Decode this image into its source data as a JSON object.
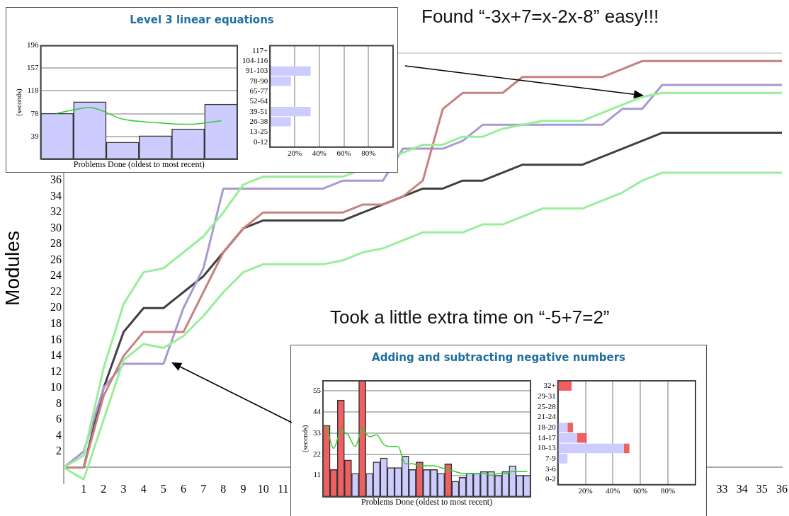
{
  "chart_data": [
    {
      "type": "line",
      "ylabel": "Modules",
      "annotations": [
        "Found “-3x+7=x-2x-8” easy!!!",
        "Took a little extra time on “-5+7=2”"
      ],
      "x": [
        0,
        1,
        2,
        3,
        4,
        5,
        6,
        7,
        8,
        9,
        10,
        11,
        12,
        13,
        14,
        15,
        16,
        17,
        18,
        19,
        20,
        21,
        22,
        23,
        24,
        25,
        26,
        27,
        28,
        29,
        30,
        31,
        32,
        33,
        34,
        35,
        36
      ],
      "xlim": [
        0,
        36
      ],
      "xticks": [
        1,
        2,
        3,
        4,
        5,
        6,
        7,
        8,
        9,
        10,
        11,
        33,
        34,
        35,
        36
      ],
      "ylim": [
        -2,
        52
      ],
      "yticks": [
        2,
        4,
        6,
        8,
        10,
        12,
        14,
        16,
        18,
        20,
        22,
        24,
        26,
        28,
        30,
        32,
        34,
        36
      ],
      "series": [
        {
          "color": "#99ee99",
          "values": [
            0,
            1.5,
            12.5,
            20.5,
            24.5,
            25,
            27,
            29,
            32,
            35.5,
            36.5,
            36.5,
            36.5,
            36.5,
            36.5,
            null,
            null,
            39.5,
            40.5,
            40.5,
            41.5,
            41.5,
            42.5,
            43,
            43.5,
            43.5,
            43.5,
            44.5,
            45.5,
            46.5,
            47,
            47,
            47,
            47,
            47,
            47,
            47
          ]
        },
        {
          "color": "#99ee99",
          "values": [
            0,
            -1.5,
            6,
            13.5,
            15.5,
            15,
            16.5,
            19,
            22,
            24.5,
            25.5,
            25.5,
            25.5,
            25.5,
            26,
            27,
            27.5,
            28.5,
            29.5,
            29.5,
            29.5,
            30.5,
            30.5,
            31.5,
            32.5,
            32.5,
            32.5,
            33.5,
            34.5,
            36,
            37,
            37,
            37,
            37,
            37,
            37,
            37
          ]
        },
        {
          "color": "#c88080",
          "values": [
            0,
            0,
            9,
            14,
            17,
            17,
            17,
            22,
            27,
            30,
            32,
            32,
            32,
            32,
            32,
            33,
            33,
            34,
            36,
            45,
            47,
            47,
            47,
            49,
            49,
            49,
            49,
            49,
            50,
            51,
            51,
            51,
            51,
            51,
            51,
            51,
            51
          ]
        },
        {
          "color": "#a89ad0",
          "values": [
            0,
            2,
            10,
            13,
            13,
            13,
            20,
            25,
            35,
            35,
            35,
            35,
            35,
            35,
            36,
            36,
            36,
            40,
            40,
            40,
            41,
            43,
            43,
            43,
            43,
            43,
            43,
            43,
            45,
            45,
            48,
            48,
            48,
            48,
            48,
            48,
            48
          ]
        },
        {
          "color": "#404040",
          "values": [
            0,
            0,
            10,
            17,
            20,
            20,
            22,
            24,
            27,
            30,
            31,
            31,
            31,
            31,
            31,
            32,
            33,
            34,
            35,
            35,
            36,
            36,
            37,
            38,
            38,
            38,
            38,
            39,
            40,
            41,
            42,
            42,
            42,
            42,
            42,
            42,
            42
          ]
        }
      ]
    },
    {
      "type": "bar",
      "title": "Level 3 linear equations",
      "xlabel": "Problems Done (oldest to most recent)",
      "ylabel": "(seconds)",
      "categories": [
        null,
        null,
        null,
        null,
        null,
        null
      ],
      "tick_labels": "y",
      "grid": "y",
      "ylim": [
        0,
        196
      ],
      "yticks": [
        39,
        78,
        118,
        157,
        196
      ],
      "series": [
        {
          "type": "bar",
          "color": "#ccccff",
          "values": [
            79,
            99,
            29,
            40,
            52,
            95
          ]
        },
        {
          "type": "line",
          "color": "#33cc33",
          "values": [
            79,
            89,
            69,
            63,
            60,
            66
          ]
        }
      ]
    },
    {
      "type": "bar",
      "orientation": "horizontal",
      "grid": "x",
      "categories": [
        "117+",
        "104-116",
        "91-103",
        "78-90",
        "65-77",
        "52-64",
        "39-51",
        "26-38",
        "13-25",
        "0-12"
      ],
      "xlim": [
        0,
        100
      ],
      "xticks": [
        {
          "value": 20,
          "label": "20%"
        },
        {
          "value": 40,
          "label": "40%"
        },
        {
          "value": 60,
          "label": "60%"
        },
        {
          "value": 80,
          "label": "80%"
        }
      ],
      "values": [
        null,
        null,
        33,
        17,
        null,
        null,
        33,
        17,
        null,
        null
      ],
      "color": "#ccccff"
    },
    {
      "type": "bar",
      "title": "Adding and subtracting negative numbers",
      "xlabel": "Problems Done (oldest to most recent)",
      "ylabel": "(seconds)",
      "categories": [
        null,
        null,
        null,
        null,
        null,
        null,
        null,
        null,
        null,
        null,
        null,
        null,
        null,
        null,
        null,
        null,
        null,
        null,
        null,
        null,
        null,
        null,
        null,
        null,
        null,
        null,
        null,
        null,
        null
      ],
      "tick_labels": "y",
      "grid": "y",
      "ylim": [
        0,
        60
      ],
      "yticks": [
        11,
        22,
        33,
        44,
        55
      ],
      "series": [
        {
          "type": "bar",
          "colors": [
            "#f06060",
            "#f06060",
            "#f06060",
            "#f06060",
            "#ccccff",
            "#f06060",
            "#ccccff",
            "#ccccff",
            "#ccccff",
            "#ccccff",
            "#ccccff",
            "#ccccff",
            "#ccccff",
            "#f06060",
            "#ccccff",
            "#ccccff",
            "#ccccff",
            "#f06060",
            "#ccccff",
            "#ccccff",
            "#ccccff",
            "#ccccff",
            "#ccccff",
            "#ccccff",
            "#ccccff",
            "#ccccff",
            "#ccccff",
            "#ccccff",
            "#ccccff"
          ],
          "values": [
            37,
            14,
            50,
            19,
            12,
            60,
            12,
            18,
            20,
            15,
            15,
            21,
            14,
            18,
            14,
            14,
            12,
            17,
            8,
            10,
            12,
            12,
            13,
            13,
            11,
            13,
            16,
            11,
            11
          ]
        },
        {
          "type": "line",
          "color": "#33cc33",
          "values": [
            37,
            25,
            34,
            32,
            26,
            35,
            31,
            32,
            27,
            26,
            26,
            17,
            17,
            16,
            16,
            16,
            15,
            14,
            13,
            12,
            12,
            12,
            12,
            11,
            12,
            12,
            13,
            13,
            13
          ]
        }
      ]
    },
    {
      "type": "bar",
      "orientation": "horizontal",
      "stacked": true,
      "grid": "x",
      "categories": [
        "32+",
        "29-31",
        "25-28",
        "21-24",
        "18-20",
        "14-17",
        "10-13",
        "7-9",
        "3-6",
        "0-2"
      ],
      "xlim": [
        0,
        100
      ],
      "xticks": [
        {
          "value": 20,
          "label": "20%"
        },
        {
          "value": 40,
          "label": "40%"
        },
        {
          "value": 60,
          "label": "60%"
        },
        {
          "value": 80,
          "label": "80%"
        }
      ],
      "series": [
        {
          "color": "#ccccff",
          "values": [
            null,
            null,
            null,
            null,
            7,
            14,
            48,
            7,
            null,
            null
          ]
        },
        {
          "color": "#f06060",
          "values": [
            10,
            null,
            null,
            null,
            4,
            7,
            4,
            null,
            null,
            null
          ]
        }
      ]
    }
  ]
}
